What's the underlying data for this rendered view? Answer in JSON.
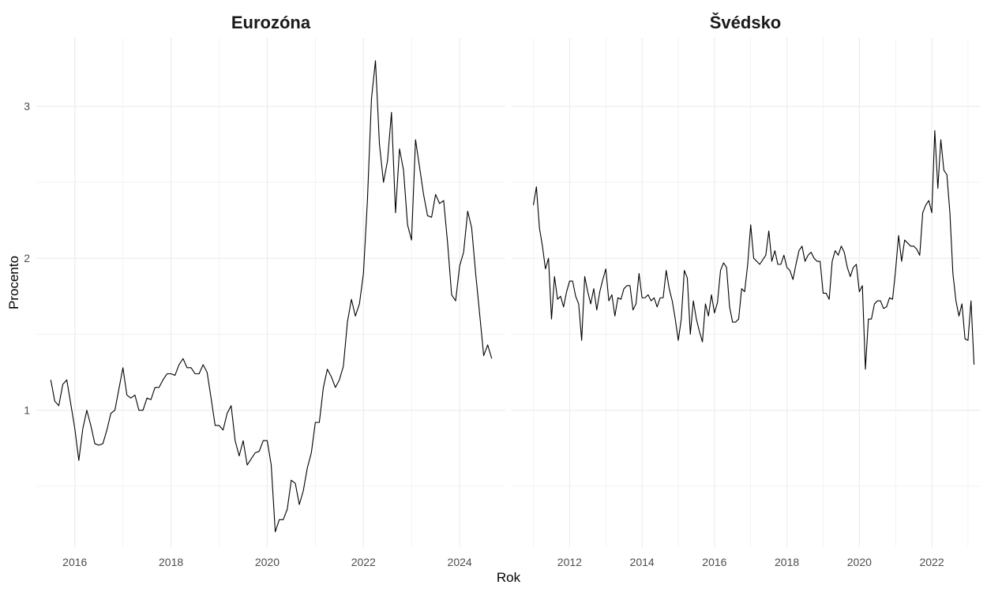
{
  "xlabel": "Rok",
  "ylabel": "Procento",
  "style": {
    "line_color": "#000000",
    "grid_color": "#ebebeb",
    "background": "#ffffff",
    "tick_color": "#4d4d4d",
    "title_color": "#1a1a1a"
  },
  "chart_data": [
    {
      "type": "line",
      "title": "Eurozóna",
      "xlim": [
        2015.2,
        2024.95
      ],
      "ylim": [
        0.1,
        3.45
      ],
      "y_ticks": [
        1,
        2,
        3
      ],
      "x_ticks": [
        2016,
        2018,
        2020,
        2022,
        2024
      ],
      "grid": true,
      "x": [
        2015.5,
        2015.583,
        2015.667,
        2015.75,
        2015.833,
        2015.917,
        2016.0,
        2016.083,
        2016.167,
        2016.25,
        2016.333,
        2016.417,
        2016.5,
        2016.583,
        2016.667,
        2016.75,
        2016.833,
        2016.917,
        2017.0,
        2017.083,
        2017.167,
        2017.25,
        2017.333,
        2017.417,
        2017.5,
        2017.583,
        2017.667,
        2017.75,
        2017.833,
        2017.917,
        2018.0,
        2018.083,
        2018.167,
        2018.25,
        2018.333,
        2018.417,
        2018.5,
        2018.583,
        2018.667,
        2018.75,
        2018.833,
        2018.917,
        2019.0,
        2019.083,
        2019.167,
        2019.25,
        2019.333,
        2019.417,
        2019.5,
        2019.583,
        2019.667,
        2019.75,
        2019.833,
        2019.917,
        2020.0,
        2020.083,
        2020.167,
        2020.25,
        2020.333,
        2020.417,
        2020.5,
        2020.583,
        2020.667,
        2020.75,
        2020.833,
        2020.917,
        2021.0,
        2021.083,
        2021.167,
        2021.25,
        2021.333,
        2021.417,
        2021.5,
        2021.583,
        2021.667,
        2021.75,
        2021.833,
        2021.917,
        2022.0,
        2022.083,
        2022.167,
        2022.25,
        2022.333,
        2022.417,
        2022.5,
        2022.583,
        2022.667,
        2022.75,
        2022.833,
        2022.917,
        2023.0,
        2023.083,
        2023.167,
        2023.25,
        2023.333,
        2023.417,
        2023.5,
        2023.583,
        2023.667,
        2023.75,
        2023.833,
        2023.917,
        2024.0,
        2024.083,
        2024.167,
        2024.25,
        2024.333,
        2024.417,
        2024.5,
        2024.583,
        2024.667
      ],
      "values": [
        1.2,
        1.06,
        1.03,
        1.17,
        1.2,
        1.04,
        0.88,
        0.67,
        0.88,
        1.0,
        0.9,
        0.78,
        0.77,
        0.78,
        0.87,
        0.98,
        1.0,
        1.14,
        1.28,
        1.1,
        1.08,
        1.1,
        1.0,
        1.0,
        1.08,
        1.07,
        1.15,
        1.15,
        1.2,
        1.24,
        1.24,
        1.23,
        1.3,
        1.34,
        1.28,
        1.28,
        1.24,
        1.24,
        1.3,
        1.25,
        1.08,
        0.9,
        0.9,
        0.87,
        0.98,
        1.03,
        0.8,
        0.7,
        0.8,
        0.64,
        0.68,
        0.72,
        0.73,
        0.8,
        0.8,
        0.64,
        0.2,
        0.28,
        0.28,
        0.35,
        0.54,
        0.52,
        0.38,
        0.47,
        0.62,
        0.72,
        0.92,
        0.92,
        1.15,
        1.27,
        1.22,
        1.15,
        1.2,
        1.29,
        1.58,
        1.73,
        1.62,
        1.7,
        1.9,
        2.38,
        3.05,
        3.3,
        2.75,
        2.5,
        2.64,
        2.96,
        2.3,
        2.72,
        2.58,
        2.22,
        2.12,
        2.78,
        2.6,
        2.42,
        2.28,
        2.27,
        2.42,
        2.36,
        2.38,
        2.1,
        1.76,
        1.72,
        1.95,
        2.04,
        2.31,
        2.2,
        1.9,
        1.63,
        1.36,
        1.43,
        1.34
      ]
    },
    {
      "type": "line",
      "title": "Švédsko",
      "xlim": [
        2010.4,
        2023.35
      ],
      "ylim": [
        0.1,
        3.45
      ],
      "y_ticks": [
        1,
        2,
        3
      ],
      "x_ticks": [
        2012,
        2014,
        2016,
        2018,
        2020,
        2022
      ],
      "grid": true,
      "x": [
        2011.0,
        2011.083,
        2011.167,
        2011.25,
        2011.333,
        2011.417,
        2011.5,
        2011.583,
        2011.667,
        2011.75,
        2011.833,
        2011.917,
        2012.0,
        2012.083,
        2012.167,
        2012.25,
        2012.333,
        2012.417,
        2012.5,
        2012.583,
        2012.667,
        2012.75,
        2012.833,
        2012.917,
        2013.0,
        2013.083,
        2013.167,
        2013.25,
        2013.333,
        2013.417,
        2013.5,
        2013.583,
        2013.667,
        2013.75,
        2013.833,
        2013.917,
        2014.0,
        2014.083,
        2014.167,
        2014.25,
        2014.333,
        2014.417,
        2014.5,
        2014.583,
        2014.667,
        2014.75,
        2014.833,
        2014.917,
        2015.0,
        2015.083,
        2015.167,
        2015.25,
        2015.333,
        2015.417,
        2015.5,
        2015.583,
        2015.667,
        2015.75,
        2015.833,
        2015.917,
        2016.0,
        2016.083,
        2016.167,
        2016.25,
        2016.333,
        2016.417,
        2016.5,
        2016.583,
        2016.667,
        2016.75,
        2016.833,
        2016.917,
        2017.0,
        2017.083,
        2017.167,
        2017.25,
        2017.333,
        2017.417,
        2017.5,
        2017.583,
        2017.667,
        2017.75,
        2017.833,
        2017.917,
        2018.0,
        2018.083,
        2018.167,
        2018.25,
        2018.333,
        2018.417,
        2018.5,
        2018.583,
        2018.667,
        2018.75,
        2018.833,
        2018.917,
        2019.0,
        2019.083,
        2019.167,
        2019.25,
        2019.333,
        2019.417,
        2019.5,
        2019.583,
        2019.667,
        2019.75,
        2019.833,
        2019.917,
        2020.0,
        2020.083,
        2020.167,
        2020.25,
        2020.333,
        2020.417,
        2020.5,
        2020.583,
        2020.667,
        2020.75,
        2020.833,
        2020.917,
        2021.0,
        2021.083,
        2021.167,
        2021.25,
        2021.333,
        2021.417,
        2021.5,
        2021.583,
        2021.667,
        2021.75,
        2021.833,
        2021.917,
        2022.0,
        2022.083,
        2022.167,
        2022.25,
        2022.333,
        2022.417,
        2022.5,
        2022.583,
        2022.667,
        2022.75,
        2022.833,
        2022.917,
        2023.0,
        2023.083,
        2023.167
      ],
      "values": [
        2.35,
        2.47,
        2.2,
        2.08,
        1.93,
        2.0,
        1.6,
        1.88,
        1.73,
        1.75,
        1.68,
        1.78,
        1.85,
        1.85,
        1.75,
        1.7,
        1.46,
        1.88,
        1.78,
        1.7,
        1.8,
        1.66,
        1.78,
        1.86,
        1.93,
        1.72,
        1.76,
        1.62,
        1.74,
        1.73,
        1.8,
        1.82,
        1.82,
        1.66,
        1.7,
        1.9,
        1.74,
        1.74,
        1.76,
        1.72,
        1.74,
        1.68,
        1.74,
        1.74,
        1.92,
        1.8,
        1.72,
        1.6,
        1.46,
        1.6,
        1.92,
        1.87,
        1.5,
        1.72,
        1.6,
        1.52,
        1.45,
        1.7,
        1.62,
        1.76,
        1.64,
        1.71,
        1.92,
        1.97,
        1.94,
        1.68,
        1.58,
        1.58,
        1.6,
        1.8,
        1.78,
        1.96,
        2.22,
        2.0,
        1.98,
        1.96,
        1.99,
        2.02,
        2.18,
        1.98,
        2.05,
        1.96,
        1.96,
        2.02,
        1.94,
        1.92,
        1.86,
        1.96,
        2.05,
        2.08,
        1.98,
        2.02,
        2.04,
        2.0,
        1.98,
        1.98,
        1.77,
        1.77,
        1.73,
        1.98,
        2.05,
        2.02,
        2.08,
        2.04,
        1.94,
        1.88,
        1.94,
        1.96,
        1.78,
        1.82,
        1.27,
        1.6,
        1.6,
        1.7,
        1.72,
        1.72,
        1.67,
        1.68,
        1.74,
        1.73,
        1.92,
        2.15,
        1.98,
        2.12,
        2.1,
        2.08,
        2.08,
        2.06,
        2.02,
        2.3,
        2.35,
        2.38,
        2.3,
        2.84,
        2.46,
        2.78,
        2.58,
        2.55,
        2.3,
        1.9,
        1.72,
        1.62,
        1.7,
        1.47,
        1.46,
        1.72,
        1.3
      ]
    }
  ]
}
